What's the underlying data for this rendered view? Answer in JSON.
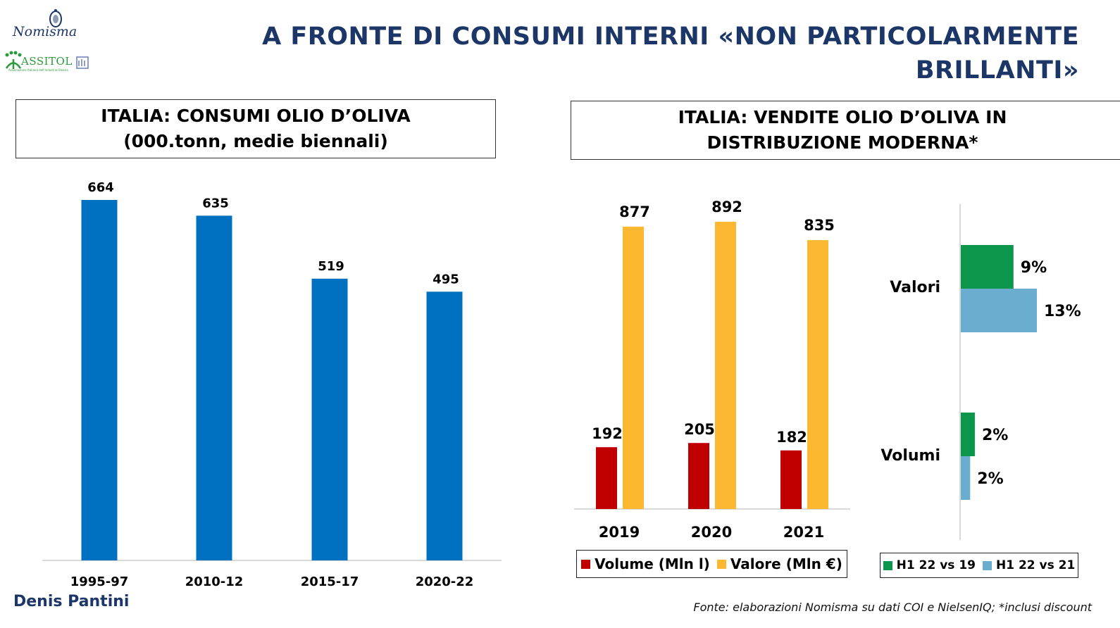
{
  "header": {
    "title_line1": "A FRONTE DI CONSUMI INTERNI «NON PARTICOLARMENTE",
    "title_line2": "BRILLANTI»",
    "logo_nomisma": "Nomisma",
    "logo_assitol": "ASSITOL",
    "logo_assitol_sub": "Associazione Italiana dell'Industria Olearia"
  },
  "footer": {
    "author": "Denis Pantini",
    "source": "Fonte: elaborazioni Nomisma su dati COI e NielsenIQ; *inclusi discount"
  },
  "colors": {
    "brand_navy": "#1c3668",
    "bar_blue": "#0070c0",
    "volume_red": "#c00000",
    "valore_yellow": "#fbb830",
    "green": "#0b964b",
    "light_blue": "#6badcf"
  },
  "chart_data": [
    {
      "type": "bar",
      "title_line1": "ITALIA: CONSUMI OLIO D’OLIVA",
      "title_line2": "(000.tonn, medie biennali)",
      "categories": [
        "1995-97",
        "2010-12",
        "2015-17",
        "2020-22"
      ],
      "values": [
        664,
        635,
        519,
        495
      ],
      "data_labels": [
        "664",
        "635",
        "519",
        "495"
      ],
      "xlabel": "",
      "ylabel": "",
      "ylim": [
        0,
        664
      ],
      "grid": false,
      "legend": "none"
    },
    {
      "type": "bar",
      "title_line1": "ITALIA: VENDITE OLIO D’OLIVA IN",
      "title_line2": "DISTRIBUZIONE MODERNA*",
      "categories": [
        "2019",
        "2020",
        "2021"
      ],
      "series": [
        {
          "name": "Volume (Mln l)",
          "values": [
            192,
            205,
            182
          ],
          "data_labels": [
            "192",
            "205",
            "182"
          ]
        },
        {
          "name": "Valore (Mln €)",
          "values": [
            877,
            892,
            835
          ],
          "data_labels": [
            "877",
            "892",
            "835"
          ]
        }
      ],
      "ylim": [
        0,
        892
      ],
      "grid": false,
      "legend": "bottom"
    },
    {
      "type": "bar",
      "orientation": "horizontal",
      "categories": [
        "Valori",
        "Volumi"
      ],
      "series": [
        {
          "name": "H1 22 vs 19",
          "values": [
            9,
            2.4
          ],
          "data_labels": [
            "9%",
            "2%"
          ]
        },
        {
          "name": "H1 22 vs 21",
          "values": [
            13,
            1.6
          ],
          "data_labels": [
            "13%",
            "2%"
          ]
        }
      ],
      "unit": "%",
      "xlim": [
        0,
        13
      ],
      "grid": false,
      "legend": "bottom"
    }
  ]
}
